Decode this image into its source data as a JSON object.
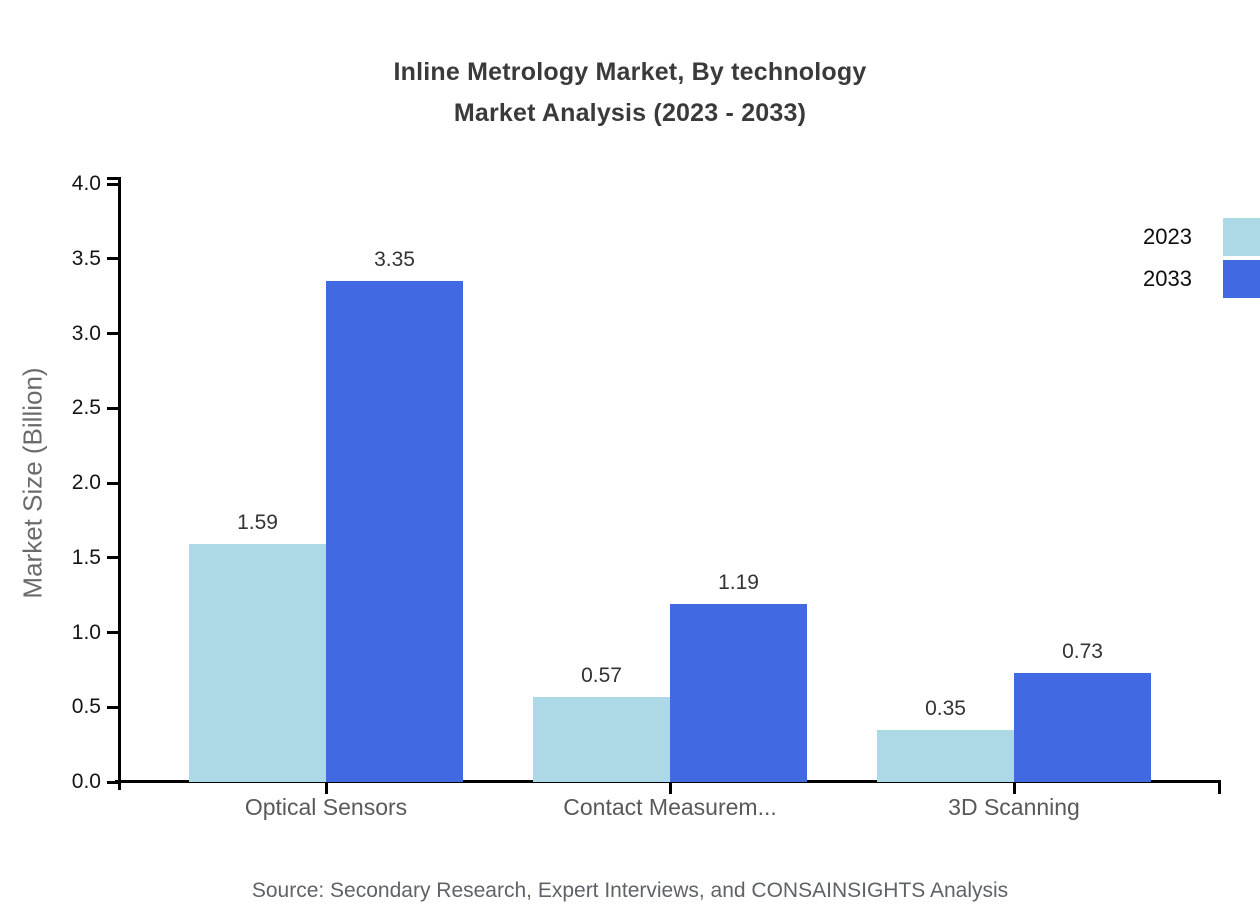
{
  "header": {
    "title_line1": "Inline Metrology Market, By technology",
    "title_line2": "Market Analysis (2023 - 2033)"
  },
  "chart_data": {
    "type": "bar",
    "title": "Inline Metrology Market, By technology Market Analysis (2023 - 2033)",
    "categories": [
      "Optical Sensors",
      "Contact Measurem...",
      "3D Scanning"
    ],
    "series": [
      {
        "name": "2023",
        "color": "#ADD8E6",
        "values": [
          1.59,
          0.57,
          0.35
        ]
      },
      {
        "name": "2033",
        "color": "#4169E1",
        "values": [
          3.35,
          1.19,
          0.73
        ]
      }
    ],
    "xlabel": "",
    "ylabel": "Market Size (Billion)",
    "ylim": [
      0,
      4
    ],
    "y_ticks": [
      "0.0",
      "0.5",
      "1.0",
      "1.5",
      "2.0",
      "2.5",
      "3.0",
      "3.5",
      "4.0"
    ],
    "value_label_decimals": 2,
    "grid": false,
    "legend_position": "top-right",
    "axis_color": "#000000"
  },
  "footer": {
    "source": "Source: Secondary Research, Expert Interviews, and CONSAINSIGHTS Analysis"
  },
  "colors": {
    "series_2023": "#ADD8E6",
    "series_2033": "#4169E1",
    "title_text": "#3a3a3a",
    "muted_text": "#6b6b6b"
  }
}
